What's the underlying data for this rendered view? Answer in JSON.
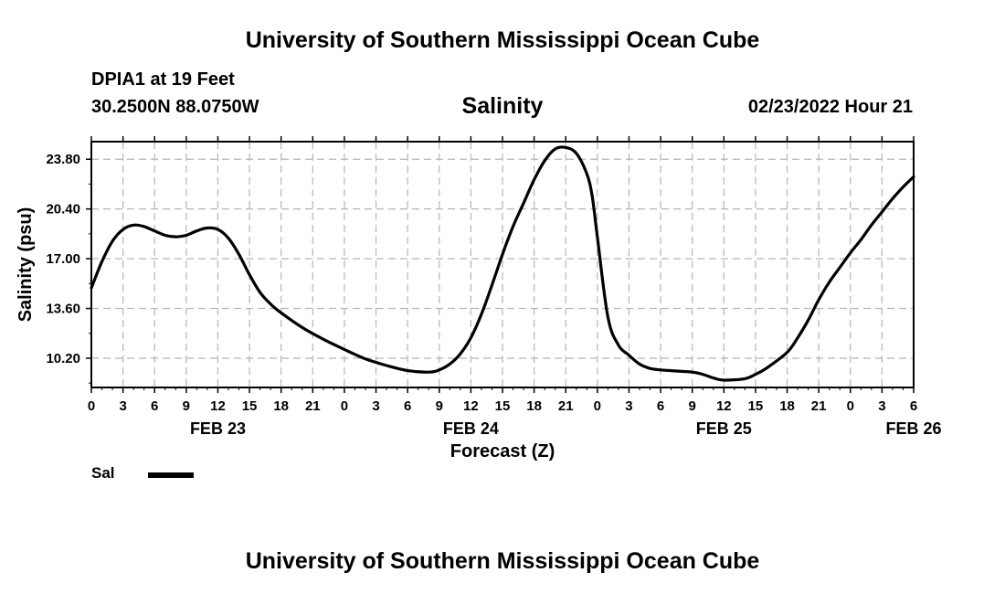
{
  "header": {
    "title": "University of Southern Mississippi Ocean Cube",
    "station": "DPIA1 at 19 Feet",
    "coords": "30.2500N  88.0750W",
    "chart_title": "Salinity",
    "timestamp": "02/23/2022 Hour 21"
  },
  "footer": {
    "title": "University of Southern Mississippi Ocean Cube"
  },
  "legend": {
    "label": "Sal",
    "color": "#000000"
  },
  "chart_data": {
    "type": "line",
    "title": "Salinity",
    "xlabel": "Forecast (Z)",
    "ylabel": "Salinity (psu)",
    "xlim": [
      0,
      78
    ],
    "ylim": [
      8.2,
      25.0
    ],
    "y_ticks": [
      10.2,
      13.6,
      17.0,
      20.4,
      23.8
    ],
    "y_tick_labels": [
      "10.20",
      "13.60",
      "17.00",
      "20.40",
      "23.80"
    ],
    "x_ticks": [
      0,
      3,
      6,
      9,
      12,
      15,
      18,
      21,
      24,
      27,
      30,
      33,
      36,
      39,
      42,
      45,
      48,
      51,
      54,
      57,
      60,
      63,
      66,
      69,
      72,
      75,
      78
    ],
    "x_tick_labels": [
      "0",
      "3",
      "6",
      "9",
      "12",
      "15",
      "18",
      "21",
      "0",
      "3",
      "6",
      "9",
      "12",
      "15",
      "18",
      "21",
      "0",
      "3",
      "6",
      "9",
      "12",
      "15",
      "18",
      "21",
      "0",
      "3",
      "6"
    ],
    "date_labels": [
      {
        "label": "FEB 23",
        "hour": 12
      },
      {
        "label": "FEB 24",
        "hour": 36
      },
      {
        "label": "FEB 25",
        "hour": 60
      },
      {
        "label": "FEB 26",
        "hour": 78
      }
    ],
    "grid": true,
    "series": [
      {
        "name": "Sal",
        "color": "#000000",
        "x": [
          0,
          1,
          2,
          3,
          4,
          5,
          6,
          7,
          8,
          9,
          10,
          11,
          12,
          13,
          14,
          15,
          16,
          17,
          18,
          20,
          22,
          24,
          26,
          28,
          30,
          32,
          33,
          34,
          35,
          36,
          37,
          38,
          39,
          40,
          41,
          42,
          43,
          44,
          45,
          46,
          47,
          47.5,
          48,
          49,
          50,
          51,
          52,
          53,
          54,
          55,
          56,
          57,
          58,
          59,
          60,
          62,
          63,
          64,
          66,
          67,
          68,
          69,
          70,
          71,
          72,
          73,
          74,
          75,
          76,
          77,
          78
        ],
        "values": [
          15.0,
          16.8,
          18.2,
          19.0,
          19.3,
          19.2,
          18.9,
          18.6,
          18.5,
          18.6,
          18.9,
          19.1,
          19.0,
          18.4,
          17.3,
          15.9,
          14.7,
          13.9,
          13.3,
          12.3,
          11.5,
          10.8,
          10.15,
          9.7,
          9.35,
          9.25,
          9.4,
          9.8,
          10.5,
          11.6,
          13.2,
          15.2,
          17.3,
          19.2,
          20.8,
          22.4,
          23.7,
          24.5,
          24.6,
          24.2,
          22.8,
          21.3,
          18.5,
          13.0,
          11.1,
          10.4,
          9.8,
          9.5,
          9.4,
          9.35,
          9.3,
          9.25,
          9.1,
          8.85,
          8.7,
          8.8,
          9.1,
          9.5,
          10.6,
          11.6,
          12.8,
          14.2,
          15.4,
          16.4,
          17.4,
          18.3,
          19.3,
          20.2,
          21.1,
          21.9,
          22.6
        ]
      }
    ]
  }
}
